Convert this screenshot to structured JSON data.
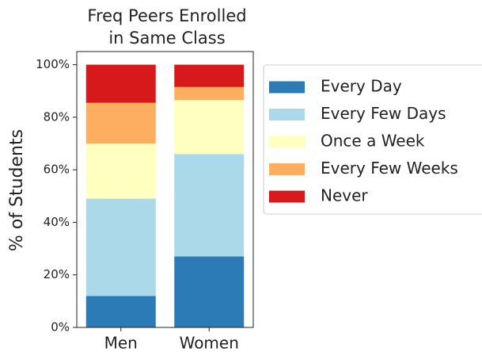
{
  "chart_data": {
    "type": "stacked_bar",
    "title": [
      "Freq Peers Enrolled",
      "in Same Class"
    ],
    "y_label": "% of Students",
    "categories": [
      "Men",
      "Women"
    ],
    "series": [
      {
        "name": "Every Day",
        "color": "#2c7bb6",
        "values": [
          12,
          27
        ]
      },
      {
        "name": "Every Few Days",
        "color": "#abd9e9",
        "values": [
          37,
          39
        ]
      },
      {
        "name": "Once a Week",
        "color": "#ffffbf",
        "values": [
          21,
          20.5
        ]
      },
      {
        "name": "Every Few Weeks",
        "color": "#fdae61",
        "values": [
          15.5,
          5
        ]
      },
      {
        "name": "Never",
        "color": "#d7191c",
        "values": [
          14.5,
          8.5
        ]
      }
    ],
    "ylim": [
      0,
      105
    ],
    "yticks": [
      {
        "value": 0,
        "label": "0%"
      },
      {
        "value": 20,
        "label": "20%"
      },
      {
        "value": 40,
        "label": "40%"
      },
      {
        "value": 60,
        "label": "60%"
      },
      {
        "value": 80,
        "label": "80%"
      },
      {
        "value": 100,
        "label": "100%"
      }
    ],
    "legend": "outside-right"
  }
}
